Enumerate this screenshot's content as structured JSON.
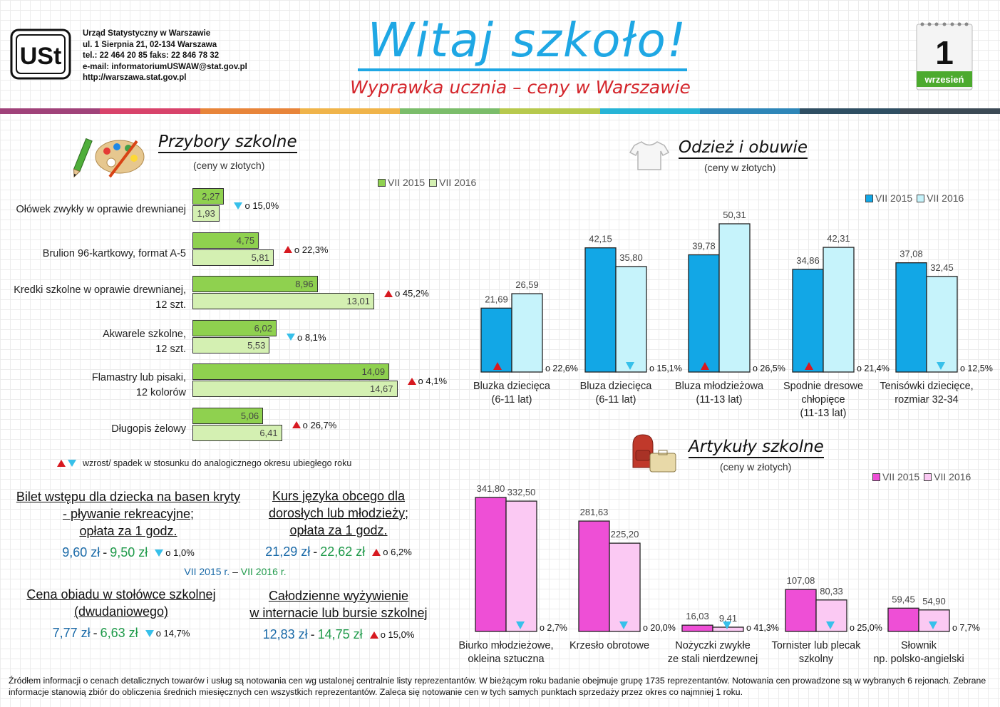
{
  "header": {
    "office_lines": [
      "Urząd Statystyczny w Warszawie",
      "ul. 1 Sierpnia 21, 02-134 Warszawa",
      "tel.: 22 464 20 85 faks: 22 846 78 32",
      "e-mail: informatoriumUSWAW@stat.gov.pl",
      "http://warszawa.stat.gov.pl"
    ],
    "title": "Witaj szkoło!",
    "subtitle": "Wyprawka ucznia – ceny w Warszawie",
    "calendar_day": "1",
    "calendar_month": "wrzesień",
    "logo_text": "USt"
  },
  "colors": {
    "green15": "#8fd14f",
    "green16": "#d4f0b2",
    "blue15": "#12a7e6",
    "blue16": "#c6f3fb",
    "pink15": "#ee4fd6",
    "pink16": "#fbc9f3",
    "up": "#d71920",
    "down": "#37c0ea"
  },
  "legend": {
    "y2015": "VII 2015",
    "y2016": "VII 2016"
  },
  "sections": {
    "supplies": {
      "title": "Przybory szkolne",
      "subtitle": "(ceny w złotych)"
    },
    "clothing": {
      "title": "Odzież i obuwie",
      "subtitle": "(ceny w złotych)"
    },
    "articles": {
      "title": "Artykuły szkolne",
      "subtitle": "(ceny w złotych)"
    }
  },
  "chart_data": [
    {
      "type": "bar",
      "orientation": "horizontal",
      "title": "Przybory szkolne",
      "subtitle": "(ceny w złotych)",
      "legend": "top-right",
      "categories": [
        [
          "Ołówek zwykły w oprawie drewnianej"
        ],
        [
          "Brulion 96-kartkowy, format A-5"
        ],
        [
          "Kredki szkolne w oprawie drewnianej,",
          "12 szt."
        ],
        [
          "Akwarele szkolne,",
          "12 szt."
        ],
        [
          "Flamastry lub pisaki,",
          "12 kolorów"
        ],
        [
          "Długopis żelowy"
        ]
      ],
      "series": [
        {
          "name": "VII 2015",
          "values": [
            2.27,
            4.75,
            8.96,
            6.02,
            14.09,
            5.06
          ],
          "labels": [
            "2,27",
            "4,75",
            "8,96",
            "6,02",
            "14,09",
            "5,06"
          ]
        },
        {
          "name": "VII 2016",
          "values": [
            1.93,
            5.81,
            13.01,
            5.53,
            14.67,
            6.41
          ],
          "labels": [
            "1,93",
            "5,81",
            "13,01",
            "5,53",
            "14,67",
            "6,41"
          ]
        }
      ],
      "changes": [
        {
          "dir": "down",
          "text": "o 15,0%"
        },
        {
          "dir": "up",
          "text": "o 22,3%"
        },
        {
          "dir": "up",
          "text": "o 45,2%"
        },
        {
          "dir": "down",
          "text": "o 8,1%"
        },
        {
          "dir": "up",
          "text": "o 4,1%"
        },
        {
          "dir": "up",
          "text": "o 26,7%"
        }
      ]
    },
    {
      "type": "bar",
      "title": "Odzież i obuwie",
      "subtitle": "(ceny w złotych)",
      "legend": "top-right",
      "categories": [
        [
          "Bluzka dziecięca",
          "(6-11 lat)"
        ],
        [
          "Bluza dziecięca",
          "(6-11 lat)"
        ],
        [
          "Bluza młodzieżowa",
          "(11-13 lat)"
        ],
        [
          "Spodnie dresowe",
          "chłopięce",
          "(11-13 lat)"
        ],
        [
          "Tenisówki dziecięce,",
          "rozmiar 32-34"
        ]
      ],
      "series": [
        {
          "name": "VII 2015",
          "values": [
            21.69,
            42.15,
            39.78,
            34.86,
            37.08
          ],
          "labels": [
            "21,69",
            "42,15",
            "39,78",
            "34,86",
            "37,08"
          ]
        },
        {
          "name": "VII 2016",
          "values": [
            26.59,
            35.8,
            50.31,
            42.31,
            32.45
          ],
          "labels": [
            "26,59",
            "35,80",
            "50,31",
            "42,31",
            "32,45"
          ]
        }
      ],
      "changes": [
        {
          "dir": "up",
          "text": "o 22,6%"
        },
        {
          "dir": "down",
          "text": "o 15,1%"
        },
        {
          "dir": "up",
          "text": "o 26,5%"
        },
        {
          "dir": "up",
          "text": "o 21,4%"
        },
        {
          "dir": "down",
          "text": "o 12,5%"
        }
      ]
    },
    {
      "type": "bar",
      "title": "Artykuły szkolne",
      "subtitle": "(ceny w złotych)",
      "legend": "top-right",
      "categories": [
        [
          "Biurko młodzieżowe,",
          "okleina sztuczna"
        ],
        [
          "Krzesło obrotowe"
        ],
        [
          "Nożyczki zwykłe",
          "ze stali nierdzewnej"
        ],
        [
          "Tornister lub plecak",
          "szkolny"
        ],
        [
          "Słownik",
          "np. polsko-angielski"
        ]
      ],
      "series": [
        {
          "name": "VII 2015",
          "values": [
            341.8,
            281.63,
            16.03,
            107.08,
            59.45
          ],
          "labels": [
            "341,80",
            "281,63",
            "16,03",
            "107,08",
            "59,45"
          ]
        },
        {
          "name": "VII 2016",
          "values": [
            332.5,
            225.2,
            9.41,
            80.33,
            54.9
          ],
          "labels": [
            "332,50",
            "225,20",
            "9,41",
            "80,33",
            "54,90"
          ]
        }
      ],
      "changes": [
        {
          "dir": "down",
          "text": "o 2,7%"
        },
        {
          "dir": "down",
          "text": "o 20,0%"
        },
        {
          "dir": "down",
          "text": "o 41,3%"
        },
        {
          "dir": "down",
          "text": "o 25,0%"
        },
        {
          "dir": "down",
          "text": "o 7,7%"
        }
      ]
    }
  ],
  "legend_note": "wzrost/ spadek w stosunku do analogicznego okresu ubiegłego roku",
  "info": {
    "pool": {
      "lines": [
        "Bilet wstępu dla dziecka na basen kryty",
        "- pływanie rekreacyjne;",
        "opłata za 1 godz."
      ],
      "v2015": "9,60 zł",
      "v2016": "9,50 zł",
      "dir": "down",
      "change": "o 1,0%"
    },
    "course": {
      "lines": [
        "Kurs języka obcego dla",
        "dorosłych lub młodzieży;",
        "opłata za 1 godz."
      ],
      "v2015": "21,29 zł",
      "v2016": "22,62 zł",
      "dir": "up",
      "change": "o 6,2%"
    },
    "period_from": "VII 2015 r.",
    "period_sep": " – ",
    "period_to": "VII 2016 r.",
    "lunch": {
      "lines": [
        "Cena obiadu w stołówce szkolnej",
        "(dwudaniowego)"
      ],
      "v2015": "7,77 zł",
      "v2016": "6,63 zł",
      "dir": "down",
      "change": "o 14,7%"
    },
    "boarding": {
      "lines": [
        "Całodzienne wyżywienie",
        "w internacie lub bursie szkolnej"
      ],
      "v2015": "12,83 zł",
      "v2016": "14,75 zł",
      "dir": "up",
      "change": "o 15,0%"
    },
    "dash": "-"
  },
  "footer": "Źródłem informacji o cenach detalicznych towarów i usług są notowania cen wg ustalonej centralnie listy reprezentantów. W bieżącym roku badanie obejmuje grupę 1735 reprezentantów. Notowania cen prowadzone są w wybranych 6 rejonach. Zebrane informacje stanowią zbiór do obliczenia średnich miesięcznych cen wszystkich reprezentantów. Zaleca się notowanie cen w tych samych punktach sprzedaży przez okres co najmniej 1 roku."
}
